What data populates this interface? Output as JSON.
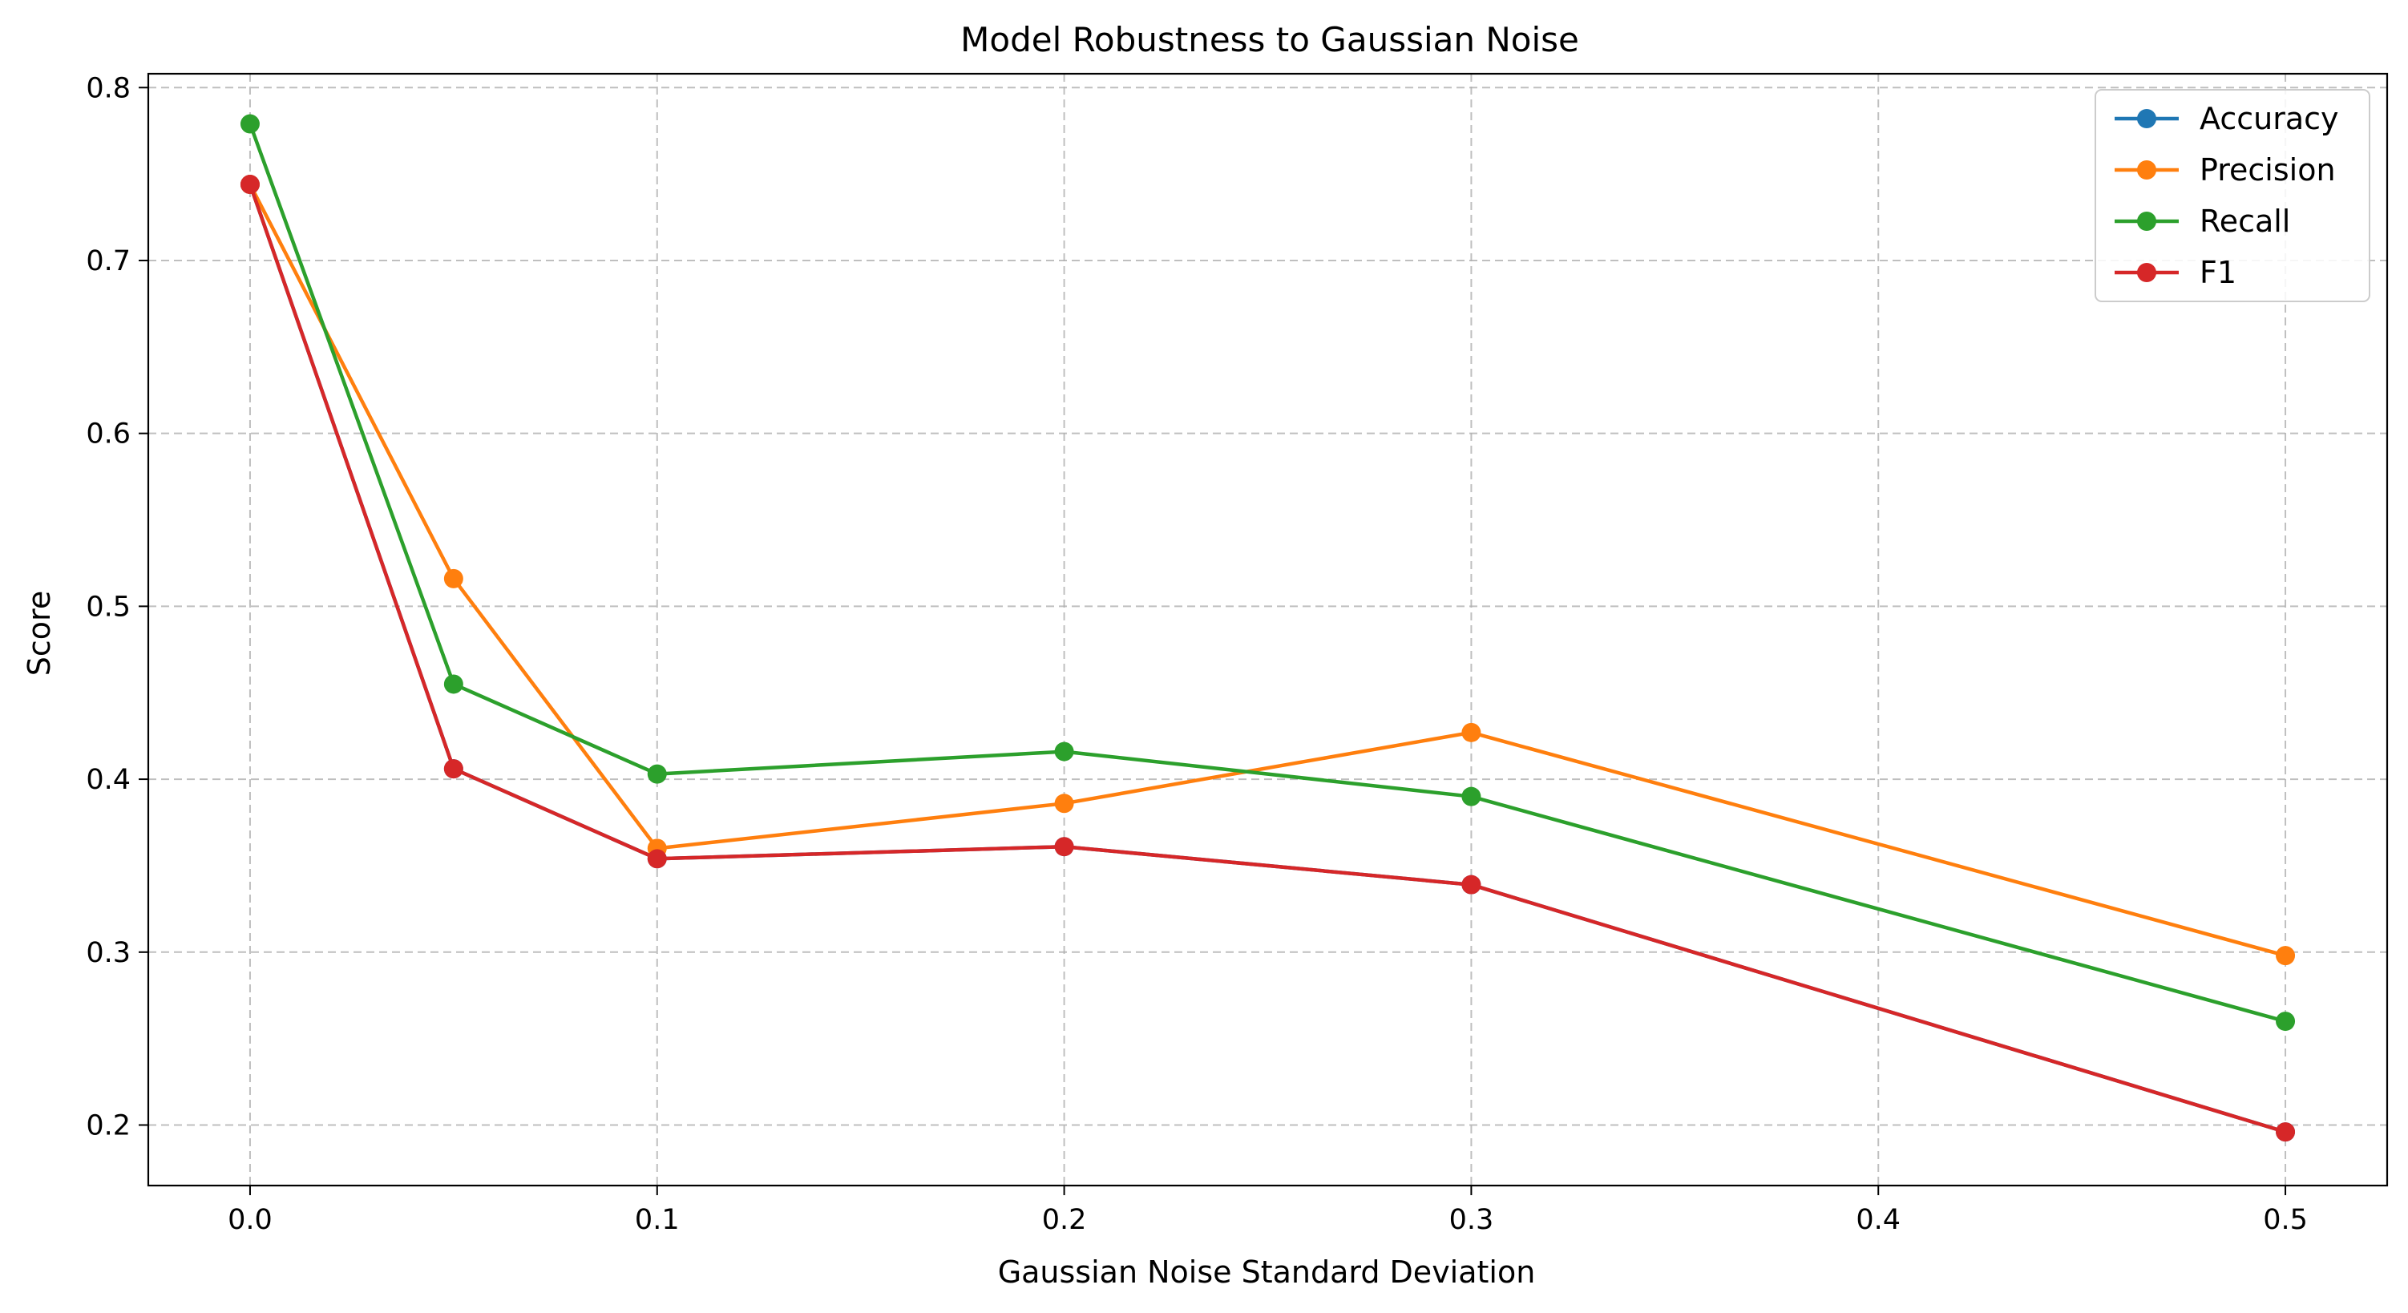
{
  "chart_data": {
    "type": "line",
    "title": "Model Robustness to Gaussian Noise",
    "xlabel": "Gaussian Noise Standard Deviation",
    "ylabel": "Score",
    "x": [
      0.0,
      0.05,
      0.1,
      0.2,
      0.3,
      0.5
    ],
    "xlim": [
      -0.025,
      0.525
    ],
    "ylim": [
      0.165,
      0.808
    ],
    "xticks": [
      0.0,
      0.1,
      0.2,
      0.3,
      0.4,
      0.5
    ],
    "xtick_labels": [
      "0.0",
      "0.1",
      "0.2",
      "0.3",
      "0.4",
      "0.5"
    ],
    "yticks": [
      0.2,
      0.3,
      0.4,
      0.5,
      0.6,
      0.7,
      0.8
    ],
    "ytick_labels": [
      "0.2",
      "0.3",
      "0.4",
      "0.5",
      "0.6",
      "0.7",
      "0.8"
    ],
    "grid": true,
    "legend_position": "top-right",
    "series": [
      {
        "name": "Accuracy",
        "color": "#1f77b4",
        "values": [
          0.744,
          0.406,
          0.354,
          0.361,
          0.339,
          0.196
        ]
      },
      {
        "name": "Precision",
        "color": "#ff7f0e",
        "values": [
          0.744,
          0.516,
          0.36,
          0.386,
          0.427,
          0.298
        ]
      },
      {
        "name": "Recall",
        "color": "#2ca02c",
        "values": [
          0.779,
          0.455,
          0.403,
          0.416,
          0.39,
          0.26
        ]
      },
      {
        "name": "F1",
        "color": "#d62728",
        "values": [
          0.744,
          0.406,
          0.354,
          0.361,
          0.339,
          0.196
        ]
      }
    ]
  }
}
